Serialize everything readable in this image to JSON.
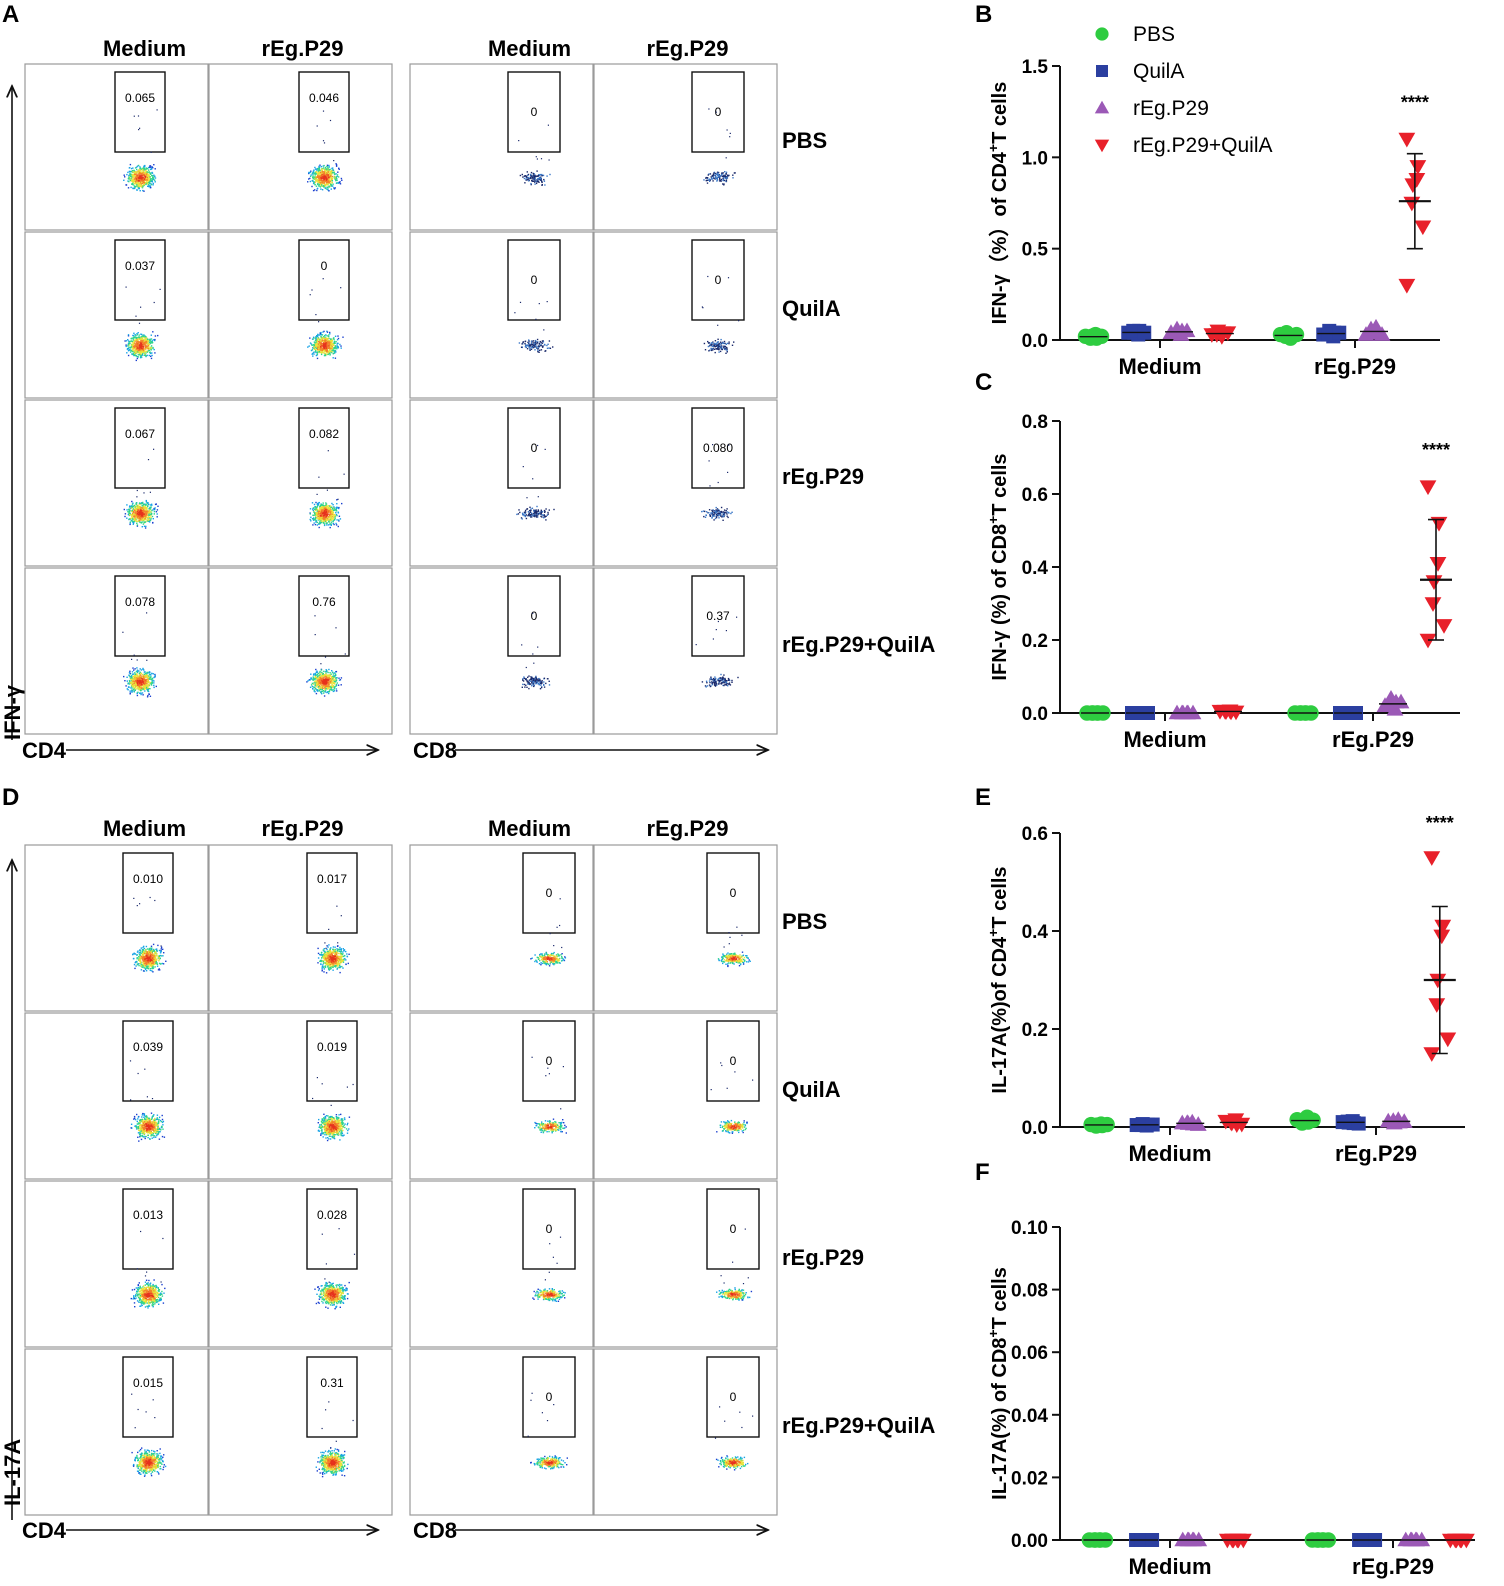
{
  "colors": {
    "PBS": "#2ecc40",
    "QuilA": "#2b3fa0",
    "rEg.P29": "#9b59b6",
    "rEg.P29+QuilA": "#e8202a"
  },
  "legend": [
    {
      "name": "PBS",
      "marker": "circle"
    },
    {
      "name": "QuilA",
      "marker": "square"
    },
    {
      "name": "rEg.P29",
      "marker": "triangle-up"
    },
    {
      "name": "rEg.P29+QuilA",
      "marker": "triangle-down"
    }
  ],
  "flow_panels": [
    {
      "letter": "A",
      "y_marker": "IFN-γ",
      "left_x_marker": "CD4",
      "right_x_marker": "CD8",
      "column_headers": [
        "Medium",
        "rEg.P29",
        "Medium",
        "rEg.P29"
      ],
      "rows": [
        {
          "label": "PBS",
          "gates": [
            "0.065",
            "0.046",
            "0",
            "0"
          ]
        },
        {
          "label": "QuilA",
          "gates": [
            "0.037",
            "0",
            "0",
            "0"
          ]
        },
        {
          "label": "rEg.P29",
          "gates": [
            "0.067",
            "0.082",
            "0",
            "0.080"
          ]
        },
        {
          "label": "rEg.P29+QuilA",
          "gates": [
            "0.078",
            "0.76",
            "0",
            "0.37"
          ]
        }
      ]
    },
    {
      "letter": "D",
      "y_marker": "IL-17A",
      "left_x_marker": "CD4",
      "right_x_marker": "CD8",
      "column_headers": [
        "Medium",
        "rEg.P29",
        "Medium",
        "rEg.P29"
      ],
      "rows": [
        {
          "label": "PBS",
          "gates": [
            "0.010",
            "0.017",
            "0",
            "0"
          ]
        },
        {
          "label": "QuilA",
          "gates": [
            "0.039",
            "0.019",
            "0",
            "0"
          ]
        },
        {
          "label": "rEg.P29",
          "gates": [
            "0.013",
            "0.028",
            "0",
            "0"
          ]
        },
        {
          "label": "rEg.P29+QuilA",
          "gates": [
            "0.015",
            "0.31",
            "0",
            "0"
          ]
        }
      ]
    }
  ],
  "chart_data": [
    {
      "letter": "B",
      "type": "scatter",
      "ylabel": "IFN-γ（%）of CD4+T cells",
      "ylabel_main": "IFN-γ（%）of CD4",
      "ylabel_sup": "+",
      "ylabel_tail": "T cells",
      "categories": [
        "Medium",
        "rEg.P29"
      ],
      "ylim": [
        0,
        1.5
      ],
      "yticks": [
        "0.0",
        "0.5",
        "1.0",
        "1.5"
      ],
      "significance": {
        "text": "****",
        "category": "rEg.P29",
        "series": "rEg.P29+QuilA",
        "y": 1.3
      },
      "series": [
        {
          "name": "PBS",
          "values": [
            [
              0.02,
              0.01,
              0.03,
              0.02,
              0.01,
              0.02
            ],
            [
              0.03,
              0.02,
              0.01,
              0.04,
              0.02,
              0.03
            ]
          ]
        },
        {
          "name": "QuilA",
          "values": [
            [
              0.04,
              0.05,
              0.03,
              0.04,
              0.05,
              0.04
            ],
            [
              0.03,
              0.04,
              0.02,
              0.05,
              0.03,
              0.04
            ]
          ]
        },
        {
          "name": "rEg.P29",
          "values": [
            [
              0.04,
              0.05,
              0.03,
              0.06,
              0.04,
              0.05
            ],
            [
              0.03,
              0.05,
              0.07,
              0.04,
              0.06,
              0.03
            ]
          ]
        },
        {
          "name": "rEg.P29+QuilA",
          "values": [
            [
              0.03,
              0.04,
              0.02,
              0.05,
              0.03,
              0.04
            ],
            [
              1.1,
              0.95,
              0.88,
              0.85,
              0.75,
              0.62,
              0.3
            ]
          ],
          "mean": [
            null,
            0.76
          ],
          "sd": [
            null,
            0.26
          ]
        }
      ]
    },
    {
      "letter": "C",
      "type": "scatter",
      "ylabel": "IFN-γ (%) of CD8+T cells",
      "ylabel_main": "IFN-γ (%) of CD8",
      "ylabel_sup": "+",
      "ylabel_tail": "T cells",
      "categories": [
        "Medium",
        "rEg.P29"
      ],
      "ylim": [
        0,
        0.8
      ],
      "yticks": [
        "0.0",
        "0.2",
        "0.4",
        "0.6",
        "0.8"
      ],
      "significance": {
        "text": "****",
        "category": "rEg.P29",
        "series": "rEg.P29+QuilA",
        "y": 0.72
      },
      "series": [
        {
          "name": "PBS",
          "values": [
            [
              0,
              0,
              0,
              0,
              0,
              0
            ],
            [
              0,
              0,
              0,
              0,
              0,
              0
            ]
          ]
        },
        {
          "name": "QuilA",
          "values": [
            [
              0,
              0,
              0,
              0,
              0,
              0
            ],
            [
              0,
              0,
              0,
              0,
              0,
              0
            ]
          ]
        },
        {
          "name": "rEg.P29",
          "values": [
            [
              0,
              0,
              0,
              0,
              0,
              0
            ],
            [
              0.02,
              0.03,
              0.01,
              0.04,
              0.02,
              0.03
            ]
          ]
        },
        {
          "name": "rEg.P29+QuilA",
          "values": [
            [
              0.005,
              0.003,
              0.006,
              0.004,
              0.005,
              0.003
            ],
            [
              0.62,
              0.52,
              0.41,
              0.36,
              0.3,
              0.24,
              0.2
            ]
          ],
          "mean": [
            null,
            0.365
          ],
          "sd": [
            null,
            0.165
          ]
        }
      ]
    },
    {
      "letter": "E",
      "type": "scatter",
      "ylabel": "IL-17A(%)of CD4+T cells",
      "ylabel_main": "IL-17A(%)of CD4",
      "ylabel_sup": "+",
      "ylabel_tail": "T cells",
      "categories": [
        "Medium",
        "rEg.P29"
      ],
      "ylim": [
        0,
        0.6
      ],
      "yticks": [
        "0.0",
        "0.2",
        "0.4",
        "0.6"
      ],
      "significance": {
        "text": "****",
        "category": "rEg.P29",
        "series": "rEg.P29+QuilA",
        "y": 0.62
      },
      "series": [
        {
          "name": "PBS",
          "values": [
            [
              0.005,
              0.003,
              0.006,
              0.004,
              0.002,
              0.005
            ],
            [
              0.015,
              0.01,
              0.02,
              0.012,
              0.008,
              0.014
            ]
          ]
        },
        {
          "name": "QuilA",
          "values": [
            [
              0.004,
              0.005,
              0.003,
              0.006,
              0.004,
              0.005
            ],
            [
              0.01,
              0.008,
              0.012,
              0.009,
              0.011,
              0.007
            ]
          ]
        },
        {
          "name": "rEg.P29",
          "values": [
            [
              0.008,
              0.006,
              0.01,
              0.007,
              0.009,
              0.005
            ],
            [
              0.012,
              0.01,
              0.015,
              0.008,
              0.013,
              0.011
            ]
          ]
        },
        {
          "name": "rEg.P29+QuilA",
          "values": [
            [
              0.012,
              0.005,
              0.015,
              0.008,
              0.01,
              0.006
            ],
            [
              0.55,
              0.41,
              0.39,
              0.3,
              0.25,
              0.18,
              0.15
            ]
          ],
          "mean": [
            null,
            0.3
          ],
          "sd": [
            null,
            0.15
          ]
        }
      ]
    },
    {
      "letter": "F",
      "type": "scatter",
      "ylabel": "IL-17A(%) of CD8+T cells",
      "ylabel_main": "IL-17A(%) of CD8",
      "ylabel_sup": "+",
      "ylabel_tail": "T cells",
      "categories": [
        "Medium",
        "rEg.P29"
      ],
      "ylim": [
        0,
        0.1
      ],
      "yticks": [
        "0.00",
        "0.02",
        "0.04",
        "0.06",
        "0.08",
        "0.10"
      ],
      "significance": null,
      "series": [
        {
          "name": "PBS",
          "values": [
            [
              0,
              0,
              0,
              0,
              0,
              0
            ],
            [
              0,
              0,
              0,
              0,
              0,
              0
            ]
          ]
        },
        {
          "name": "QuilA",
          "values": [
            [
              0,
              0,
              0,
              0,
              0,
              0
            ],
            [
              0,
              0,
              0,
              0,
              0,
              0
            ]
          ]
        },
        {
          "name": "rEg.P29",
          "values": [
            [
              0,
              0,
              0,
              0,
              0,
              0
            ],
            [
              0,
              0,
              0,
              0,
              0,
              0
            ]
          ]
        },
        {
          "name": "rEg.P29+QuilA",
          "values": [
            [
              0,
              0,
              0,
              0,
              0,
              0
            ],
            [
              0,
              0,
              0,
              0,
              0,
              0
            ]
          ]
        }
      ]
    }
  ]
}
